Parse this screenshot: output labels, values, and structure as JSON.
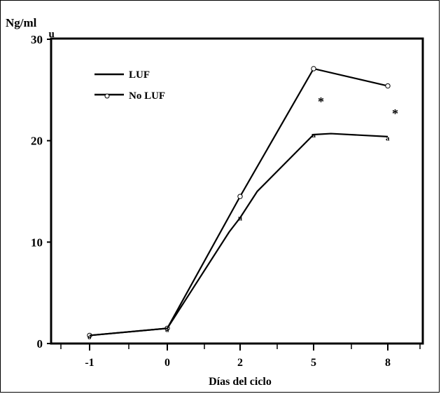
{
  "chart_data": {
    "type": "line",
    "ylabel": "Ng/ml",
    "xlabel": "Días del ciclo",
    "x_tick_labels": [
      "-1",
      "0",
      "2",
      "5",
      "8"
    ],
    "y_tick_labels": [
      "0",
      "10",
      "20",
      "30"
    ],
    "ylim": [
      0,
      30
    ],
    "grid": false,
    "legend_position": "top-left",
    "series": [
      {
        "name": "LUF",
        "marker": "none",
        "points": [
          {
            "x": "-1",
            "y": 0.8
          },
          {
            "x": "0",
            "y": 1.5
          },
          {
            "x": "2",
            "y": 14.5
          },
          {
            "x": "5",
            "y": 27.1
          },
          {
            "x": "8",
            "y": 25.4
          }
        ]
      },
      {
        "name": "No LUF",
        "marker": "circle",
        "points": [
          {
            "x": "-1",
            "y": 0.8
          },
          {
            "x": "0",
            "y": 1.5
          },
          {
            "x": "1.7",
            "y": 11.0
          },
          {
            "x": "2",
            "y": 12.4
          },
          {
            "x": "2.7",
            "y": 15.0
          },
          {
            "x": "5",
            "y": 20.6
          },
          {
            "x": "5.7",
            "y": 20.7
          },
          {
            "x": "8",
            "y": 20.4
          }
        ]
      }
    ],
    "annotations": [
      {
        "text": "*",
        "x": "5",
        "y": 24.0
      },
      {
        "text": "*",
        "x": "8",
        "y": 22.8
      }
    ],
    "stray_marks": [
      {
        "text": "u",
        "x": "-1.5",
        "y": 30.5
      },
      {
        "text": "u",
        "x": "2",
        "y": 12.4
      },
      {
        "text": "u",
        "x": "5",
        "y": 20.6
      },
      {
        "text": "a",
        "x": "8",
        "y": 20.3
      },
      {
        "text": "a",
        "x": "0",
        "y": 1.4
      },
      {
        "text": "o",
        "x": "-1",
        "y": 0.7
      }
    ]
  }
}
